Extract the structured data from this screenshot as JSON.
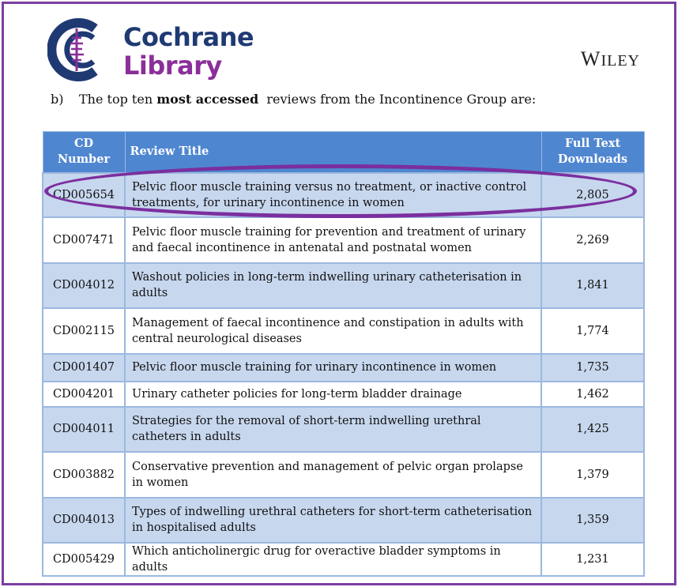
{
  "header": {
    "logo_icon": "cochrane-logo-icon",
    "brand_line1": "Cochrane",
    "brand_line2": "Library",
    "publisher": "Wiley",
    "colors": {
      "brand_navy": "#1f3a73",
      "brand_purple": "#8b2f9a",
      "frame": "#7b3fa0",
      "table_header": "#4f86d0",
      "row_shade": "#c7d7ee"
    }
  },
  "intro": {
    "marker": "b)",
    "before": "The top ten ",
    "bold": "most accessed",
    "after": "  reviews from the Incontinence Group are:"
  },
  "table": {
    "headers": {
      "cd_line1": "CD",
      "cd_line2": "Number",
      "title": "Review Title",
      "dl_line1": "Full Text",
      "dl_line2": "Downloads"
    },
    "highlighted_row": 0,
    "rows": [
      {
        "cd": "CD005654",
        "title": "Pelvic floor muscle training versus no treatment, or inactive control treatments, for urinary incontinence in women",
        "downloads": "2,805"
      },
      {
        "cd": "CD007471",
        "title": "Pelvic floor muscle training for prevention and treatment of urinary and faecal incontinence in antenatal and postnatal women",
        "downloads": "2,269"
      },
      {
        "cd": "CD004012",
        "title": "Washout policies in long-term indwelling urinary catheterisation in adults",
        "downloads": "1,841"
      },
      {
        "cd": "CD002115",
        "title": "Management of faecal incontinence and constipation in adults with central neurological diseases",
        "downloads": "1,774"
      },
      {
        "cd": "CD001407",
        "title": "Pelvic floor muscle training for urinary incontinence in women",
        "downloads": "1,735"
      },
      {
        "cd": "CD004201",
        "title": "Urinary catheter policies for long-term bladder drainage",
        "downloads": "1,462"
      },
      {
        "cd": "CD004011",
        "title": "Strategies for the removal of short-term indwelling urethral catheters in adults",
        "downloads": "1,425"
      },
      {
        "cd": "CD003882",
        "title": "Conservative prevention and management of pelvic organ prolapse in women",
        "downloads": "1,379"
      },
      {
        "cd": "CD004013",
        "title": "Types of indwelling urethral catheters for short-term catheterisation in hospitalised adults",
        "downloads": "1,359"
      },
      {
        "cd": "CD005429",
        "title": "Which anticholinergic drug for overactive bladder symptoms in adults",
        "downloads": "1,231"
      }
    ]
  }
}
